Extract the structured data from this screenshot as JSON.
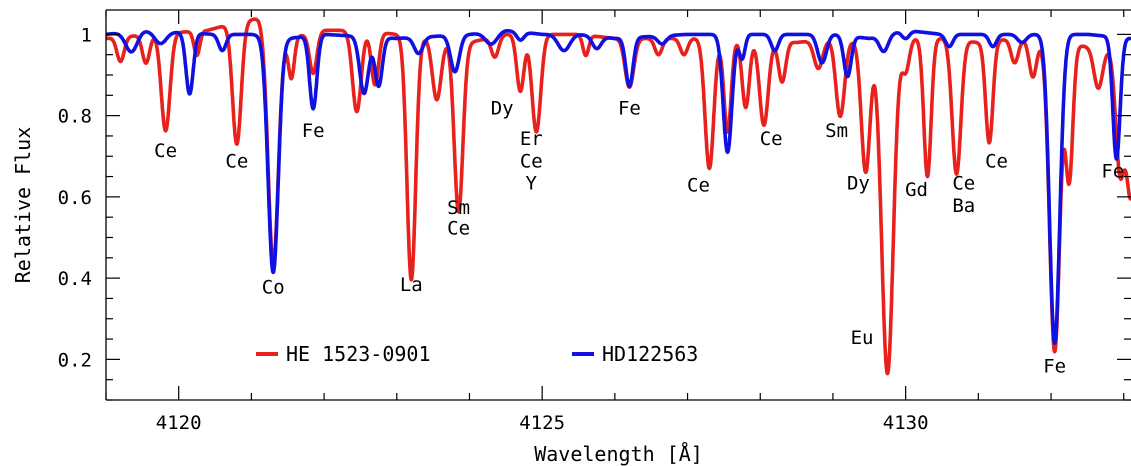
{
  "chart_data": {
    "type": "line",
    "xlabel": "Wavelength [Å]",
    "ylabel": "Relative Flux",
    "xlim": [
      4119.0,
      4133.1
    ],
    "ylim": [
      0.1,
      1.06
    ],
    "x_ticks": [
      4120,
      4125,
      4130
    ],
    "y_ticks": [
      0.2,
      0.4,
      0.6,
      0.8,
      1
    ],
    "y_tick_labels": [
      "0.2",
      "0.4",
      "0.6",
      "0.8",
      "1"
    ],
    "legend_position": "bottom-left",
    "series": [
      {
        "name": "HE 1523-0901",
        "color": "#e8211d",
        "continuum": [
          [
            4119.0,
            0.99
          ],
          [
            4119.6,
            1.0
          ],
          [
            4120.4,
            1.01
          ],
          [
            4120.8,
            1.03
          ],
          [
            4121.1,
            1.04
          ],
          [
            4121.5,
            0.99
          ],
          [
            4122.0,
            1.01
          ],
          [
            4122.5,
            1.01
          ],
          [
            4123.0,
            1.0
          ],
          [
            4124.0,
            0.98
          ],
          [
            4124.5,
            1.0
          ],
          [
            4125.0,
            1.0
          ],
          [
            4125.5,
            1.0
          ],
          [
            4126.0,
            0.99
          ],
          [
            4126.5,
            0.99
          ],
          [
            4127.0,
            0.99
          ],
          [
            4127.8,
            0.99
          ],
          [
            4128.5,
            0.98
          ],
          [
            4129.0,
            0.99
          ],
          [
            4129.5,
            0.98
          ],
          [
            4130.0,
            0.99
          ],
          [
            4130.5,
            0.99
          ],
          [
            4131.0,
            0.98
          ],
          [
            4131.5,
            0.99
          ],
          [
            4132.0,
            0.98
          ],
          [
            4132.5,
            0.97
          ],
          [
            4133.1,
            0.96
          ]
        ],
        "lines": [
          {
            "x": 4119.2,
            "depth": 0.06,
            "width": 0.05
          },
          {
            "x": 4119.55,
            "depth": 0.07,
            "width": 0.05
          },
          {
            "x": 4119.82,
            "depth": 0.24,
            "width": 0.06
          },
          {
            "x": 4120.25,
            "depth": 0.06,
            "width": 0.04
          },
          {
            "x": 4120.8,
            "depth": 0.3,
            "width": 0.06
          },
          {
            "x": 4121.3,
            "depth": 0.58,
            "width": 0.07
          },
          {
            "x": 4121.55,
            "depth": 0.1,
            "width": 0.04
          },
          {
            "x": 4121.85,
            "depth": 0.1,
            "width": 0.05
          },
          {
            "x": 4122.45,
            "depth": 0.2,
            "width": 0.06
          },
          {
            "x": 4122.7,
            "depth": 0.13,
            "width": 0.05
          },
          {
            "x": 4123.2,
            "depth": 0.6,
            "width": 0.06
          },
          {
            "x": 4123.55,
            "depth": 0.15,
            "width": 0.06
          },
          {
            "x": 4123.85,
            "depth": 0.42,
            "width": 0.06
          },
          {
            "x": 4124.35,
            "depth": 0.05,
            "width": 0.05
          },
          {
            "x": 4124.7,
            "depth": 0.14,
            "width": 0.05
          },
          {
            "x": 4124.92,
            "depth": 0.24,
            "width": 0.06
          },
          {
            "x": 4125.6,
            "depth": 0.05,
            "width": 0.04
          },
          {
            "x": 4126.2,
            "depth": 0.12,
            "width": 0.06
          },
          {
            "x": 4126.6,
            "depth": 0.04,
            "width": 0.05
          },
          {
            "x": 4126.95,
            "depth": 0.04,
            "width": 0.05
          },
          {
            "x": 4127.3,
            "depth": 0.32,
            "width": 0.06
          },
          {
            "x": 4127.55,
            "depth": 0.23,
            "width": 0.05
          },
          {
            "x": 4127.8,
            "depth": 0.17,
            "width": 0.05
          },
          {
            "x": 4128.05,
            "depth": 0.21,
            "width": 0.06
          },
          {
            "x": 4128.3,
            "depth": 0.1,
            "width": 0.05
          },
          {
            "x": 4128.8,
            "depth": 0.07,
            "width": 0.06
          },
          {
            "x": 4129.1,
            "depth": 0.19,
            "width": 0.06
          },
          {
            "x": 4129.45,
            "depth": 0.32,
            "width": 0.06
          },
          {
            "x": 4129.75,
            "depth": 0.82,
            "width": 0.08
          },
          {
            "x": 4130.0,
            "depth": 0.08,
            "width": 0.05
          },
          {
            "x": 4130.3,
            "depth": 0.34,
            "width": 0.05
          },
          {
            "x": 4130.7,
            "depth": 0.33,
            "width": 0.06
          },
          {
            "x": 4131.15,
            "depth": 0.25,
            "width": 0.05
          },
          {
            "x": 4131.5,
            "depth": 0.06,
            "width": 0.05
          },
          {
            "x": 4131.75,
            "depth": 0.09,
            "width": 0.05
          },
          {
            "x": 4132.05,
            "depth": 0.76,
            "width": 0.07
          },
          {
            "x": 4132.25,
            "depth": 0.33,
            "width": 0.05
          },
          {
            "x": 4132.65,
            "depth": 0.1,
            "width": 0.06
          },
          {
            "x": 4132.95,
            "depth": 0.3,
            "width": 0.06
          },
          {
            "x": 4133.1,
            "depth": 0.35,
            "width": 0.06
          }
        ]
      },
      {
        "name": "HD122563",
        "color": "#1010e0",
        "continuum": [
          [
            4119.0,
            1.0
          ],
          [
            4119.5,
            1.01
          ],
          [
            4120.5,
            1.0
          ],
          [
            4121.0,
            1.0
          ],
          [
            4121.5,
            0.99
          ],
          [
            4122.0,
            1.0
          ],
          [
            4123.0,
            0.99
          ],
          [
            4124.0,
            1.0
          ],
          [
            4124.5,
            1.01
          ],
          [
            4125.0,
            1.0
          ],
          [
            4125.5,
            1.0
          ],
          [
            4126.0,
            0.99
          ],
          [
            4127.0,
            1.0
          ],
          [
            4128.0,
            1.0
          ],
          [
            4128.5,
            1.0
          ],
          [
            4129.0,
            1.0
          ],
          [
            4129.5,
            0.99
          ],
          [
            4130.0,
            1.01
          ],
          [
            4130.5,
            1.0
          ],
          [
            4131.0,
            1.0
          ],
          [
            4131.5,
            1.0
          ],
          [
            4132.0,
            1.0
          ],
          [
            4132.5,
            1.0
          ],
          [
            4133.1,
            0.99
          ]
        ],
        "lines": [
          {
            "x": 4119.35,
            "depth": 0.05,
            "width": 0.08
          },
          {
            "x": 4119.75,
            "depth": 0.03,
            "width": 0.08
          },
          {
            "x": 4120.15,
            "depth": 0.15,
            "width": 0.05
          },
          {
            "x": 4120.6,
            "depth": 0.04,
            "width": 0.05
          },
          {
            "x": 4121.3,
            "depth": 0.58,
            "width": 0.07
          },
          {
            "x": 4121.85,
            "depth": 0.18,
            "width": 0.05
          },
          {
            "x": 4122.55,
            "depth": 0.14,
            "width": 0.06
          },
          {
            "x": 4122.75,
            "depth": 0.12,
            "width": 0.05
          },
          {
            "x": 4123.3,
            "depth": 0.04,
            "width": 0.06
          },
          {
            "x": 4123.8,
            "depth": 0.09,
            "width": 0.06
          },
          {
            "x": 4124.3,
            "depth": 0.03,
            "width": 0.08
          },
          {
            "x": 4124.7,
            "depth": 0.02,
            "width": 0.05
          },
          {
            "x": 4125.3,
            "depth": 0.04,
            "width": 0.08
          },
          {
            "x": 4125.75,
            "depth": 0.03,
            "width": 0.06
          },
          {
            "x": 4126.2,
            "depth": 0.12,
            "width": 0.05
          },
          {
            "x": 4126.65,
            "depth": 0.02,
            "width": 0.06
          },
          {
            "x": 4127.55,
            "depth": 0.29,
            "width": 0.06
          },
          {
            "x": 4127.75,
            "depth": 0.06,
            "width": 0.04
          },
          {
            "x": 4128.2,
            "depth": 0.04,
            "width": 0.05
          },
          {
            "x": 4128.85,
            "depth": 0.07,
            "width": 0.06
          },
          {
            "x": 4129.2,
            "depth": 0.1,
            "width": 0.05
          },
          {
            "x": 4129.7,
            "depth": 0.04,
            "width": 0.06
          },
          {
            "x": 4130.0,
            "depth": 0.02,
            "width": 0.05
          },
          {
            "x": 4130.6,
            "depth": 0.03,
            "width": 0.05
          },
          {
            "x": 4131.2,
            "depth": 0.03,
            "width": 0.05
          },
          {
            "x": 4131.6,
            "depth": 0.02,
            "width": 0.06
          },
          {
            "x": 4132.05,
            "depth": 0.76,
            "width": 0.07
          },
          {
            "x": 4132.9,
            "depth": 0.3,
            "width": 0.05
          }
        ]
      }
    ],
    "line_labels": [
      {
        "text": "Ce",
        "x": 4119.82,
        "y": 0.715
      },
      {
        "text": "Ce",
        "x": 4120.8,
        "y": 0.69
      },
      {
        "text": "Co",
        "x": 4121.3,
        "y": 0.38
      },
      {
        "text": "Fe",
        "x": 4121.85,
        "y": 0.765
      },
      {
        "text": "La",
        "x": 4123.2,
        "y": 0.385
      },
      {
        "text": "Sm",
        "x": 4123.85,
        "y": 0.575
      },
      {
        "text": "Ce",
        "x": 4123.85,
        "y": 0.525
      },
      {
        "text": "Dy",
        "x": 4124.45,
        "y": 0.82
      },
      {
        "text": "Er",
        "x": 4124.85,
        "y": 0.745
      },
      {
        "text": "Ce",
        "x": 4124.85,
        "y": 0.69
      },
      {
        "text": "Y",
        "x": 4124.85,
        "y": 0.635
      },
      {
        "text": "Fe",
        "x": 4126.2,
        "y": 0.82
      },
      {
        "text": "Ce",
        "x": 4127.15,
        "y": 0.63
      },
      {
        "text": "Ce",
        "x": 4128.15,
        "y": 0.745
      },
      {
        "text": "Sm",
        "x": 4129.05,
        "y": 0.765
      },
      {
        "text": "Dy",
        "x": 4129.35,
        "y": 0.635
      },
      {
        "text": "Eu",
        "x": 4129.4,
        "y": 0.255
      },
      {
        "text": "Gd",
        "x": 4130.15,
        "y": 0.62
      },
      {
        "text": "Ce",
        "x": 4130.8,
        "y": 0.635
      },
      {
        "text": "Ba",
        "x": 4130.8,
        "y": 0.58
      },
      {
        "text": "Ce",
        "x": 4131.25,
        "y": 0.69
      },
      {
        "text": "Fe",
        "x": 4132.05,
        "y": 0.185
      },
      {
        "text": "Fe",
        "x": 4132.85,
        "y": 0.665
      }
    ],
    "legend": [
      {
        "label": "HE 1523-0901",
        "color": "#e8211d"
      },
      {
        "label": "HD122563",
        "color": "#1010e0"
      }
    ]
  }
}
